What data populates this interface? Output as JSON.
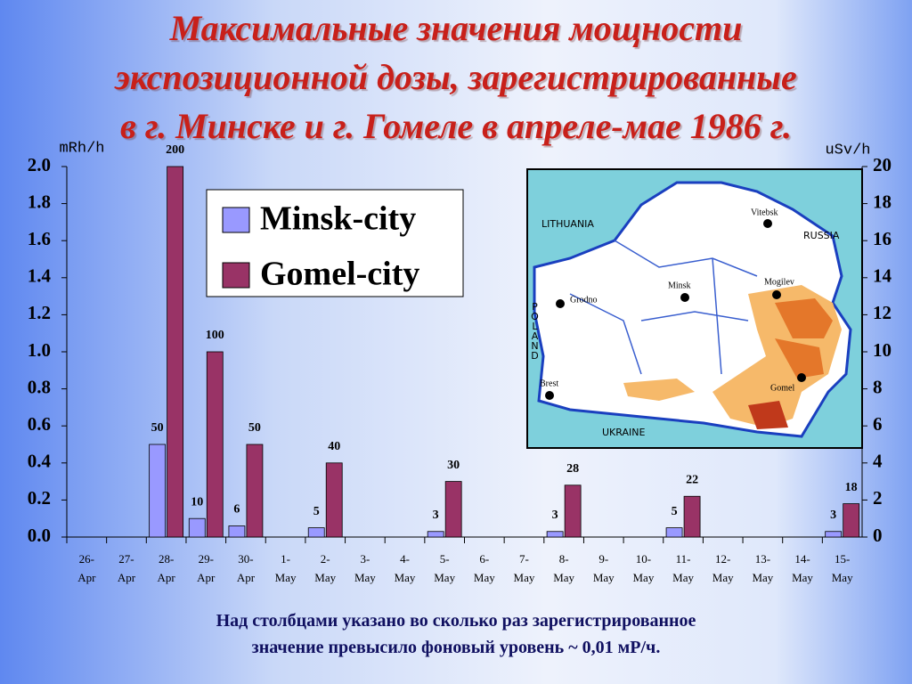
{
  "chart_data": {
    "type": "bar",
    "title": [
      "Максимальные значения мощности",
      "экспозиционной дозы, зарегистрированные",
      "в г. Минске и г. Гомеле в апреле-мае 1986 г."
    ],
    "y_label": "mRh/h",
    "y2_label": "uSv/h",
    "categories": [
      "26-Apr",
      "27-Apr",
      "28-Apr",
      "29-Apr",
      "30-Apr",
      "1-May",
      "2-May",
      "3-May",
      "4-May",
      "5-May",
      "6-May",
      "7-May",
      "8-May",
      "9-May",
      "10-May",
      "11-May",
      "12-May",
      "13-May",
      "14-May",
      "15-May"
    ],
    "series": [
      {
        "name": "Minsk-city",
        "color": "#9999ff",
        "values": [
          null,
          null,
          0.5,
          0.1,
          0.06,
          null,
          0.05,
          null,
          null,
          0.03,
          null,
          null,
          0.03,
          null,
          null,
          0.05,
          null,
          null,
          null,
          0.03
        ],
        "value_labels": [
          null,
          null,
          "50",
          "10",
          "6",
          null,
          "5",
          null,
          null,
          "3",
          null,
          null,
          "3",
          null,
          null,
          "5",
          null,
          null,
          null,
          "3"
        ]
      },
      {
        "name": "Gomel-city",
        "color": "#993366",
        "values": [
          null,
          null,
          2.0,
          1.0,
          0.5,
          null,
          0.4,
          null,
          null,
          0.3,
          null,
          null,
          0.28,
          null,
          null,
          0.22,
          null,
          null,
          null,
          0.18
        ],
        "value_labels": [
          null,
          null,
          "200",
          "100",
          "50",
          null,
          "40",
          null,
          null,
          "30",
          null,
          null,
          "28",
          null,
          null,
          "22",
          null,
          null,
          null,
          "18"
        ]
      }
    ],
    "ylim": [
      0,
      2.0
    ],
    "yticks": [
      {
        "value": 0,
        "label": "0.0"
      },
      0.2,
      0.4,
      0.6,
      0.8,
      {
        "value": 1,
        "label": "1.0"
      },
      1.2,
      1.4,
      1.6,
      1.8,
      {
        "value": 2,
        "label": "2.0"
      }
    ],
    "y2lim": [
      0,
      20
    ],
    "y2ticks": [
      0,
      2,
      4,
      6,
      8,
      10,
      12,
      14,
      16,
      18,
      20
    ],
    "grid": false,
    "note": [
      "Над столбцами указано во сколько раз зарегистрированное",
      "значение превысило фоновый уровень ~ 0,01 мР/ч."
    ]
  },
  "map": {
    "labels": [
      "LITHUANIA",
      "RUSSIA",
      "POLAND",
      "UKRAINE",
      "Vitebsk",
      "Minsk",
      "Mogilev",
      "Grodno",
      "Brest",
      "Gomel"
    ]
  }
}
